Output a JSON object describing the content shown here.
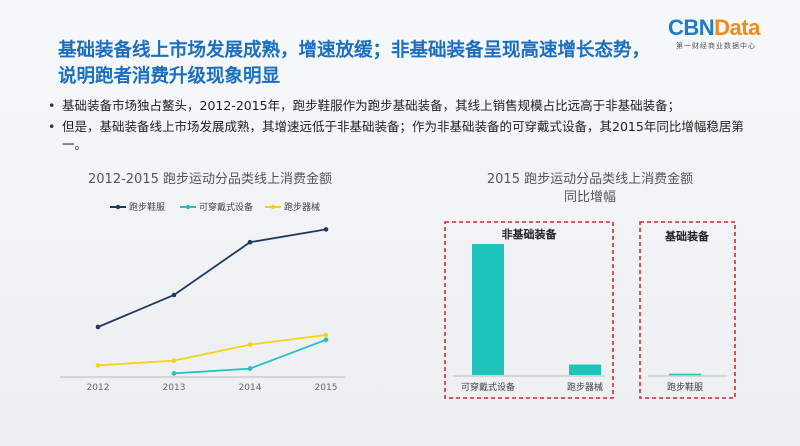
{
  "logo": {
    "brand_a": "CBN",
    "brand_b": "Data",
    "subtitle": "第一财经商业数据中心"
  },
  "title": "基础装备线上市场发展成熟，增速放缓；非基础装备呈现高速增长态势，说明跑者消费升级现象明显",
  "bullets": [
    "基础装备市场独占鳌头，2012-2015年，跑步鞋服作为跑步基础装备，其线上销售规模占比远高于非基础装备；",
    "但是，基础装备线上市场发展成熟，其增速远低于非基础装备；作为非基础装备的可穿戴式设备，其2015年同比增幅稳居第一。"
  ],
  "chart_data": [
    {
      "type": "line",
      "title": "2012-2015 跑步运动分品类线上消费金额",
      "x": [
        "2012",
        "2013",
        "2014",
        "2015"
      ],
      "legend_position": "top",
      "grid": false,
      "series": [
        {
          "name": "跑步鞋服",
          "color": "#1f3a5f",
          "values": [
            30,
            50,
            83,
            91
          ]
        },
        {
          "name": "可穿戴式设备",
          "color": "#20c0c0",
          "values": [
            null,
            1,
            4,
            22
          ]
        },
        {
          "name": "跑步器械",
          "color": "#f5d313",
          "values": [
            6,
            9,
            19,
            25
          ]
        }
      ],
      "ylim": [
        0,
        100
      ]
    },
    {
      "type": "bar",
      "title_line1": "2015 跑步运动分品类线上消费金额",
      "title_line2": "同比增幅",
      "bar_color": "#1ec4bc",
      "groups": [
        {
          "label": "非基础装备",
          "categories": [
            "可穿戴式设备",
            "跑步器械"
          ],
          "values": [
            100,
            8
          ]
        },
        {
          "label": "基础装备",
          "categories": [
            "跑步鞋服"
          ],
          "values": [
            1
          ]
        }
      ],
      "ylim": [
        0,
        100
      ],
      "group_border_color": "#d42a2a"
    }
  ]
}
